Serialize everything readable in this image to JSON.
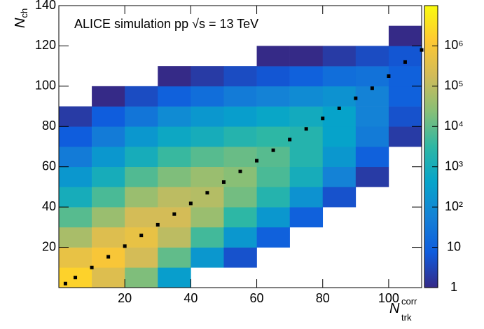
{
  "chart_data": {
    "type": "heatmap",
    "annotation": "ALICE simulation pp √s = 13 TeV",
    "x_label": {
      "main": "N",
      "sup": "corr",
      "sub": "trk"
    },
    "y_label": {
      "main": "N",
      "sub": "ch"
    },
    "xlim": [
      0,
      110
    ],
    "xticks": [
      20,
      40,
      60,
      80,
      100
    ],
    "ylim": [
      0,
      140
    ],
    "yticks": [
      20,
      40,
      60,
      80,
      100,
      120,
      140
    ],
    "zlim": [
      1,
      10000000
    ],
    "zticks": [
      1,
      10,
      {
        "value": 100,
        "label": "10²"
      },
      {
        "value": 1000,
        "label": "10³"
      },
      {
        "value": 10000,
        "label": "10⁴"
      },
      {
        "value": 100000,
        "label": "10⁵"
      },
      {
        "value": 1000000,
        "label": "10⁶"
      }
    ],
    "z_log": true,
    "colorscale": [
      "#352a87",
      "#0f5cdd",
      "#1481d6",
      "#06a4ca",
      "#2eb7a4",
      "#87bf77",
      "#d1bb59",
      "#fec832",
      "#f9fb0e"
    ],
    "x_bins": [
      0,
      10,
      20,
      30,
      40,
      50,
      60,
      70,
      80,
      90,
      100,
      110
    ],
    "y_bins": [
      0,
      10,
      20,
      30,
      40,
      50,
      60,
      70,
      80,
      90,
      100,
      110,
      120,
      130,
      140
    ],
    "z": [
      [
        2000000,
        500000,
        60000,
        8000,
        1000,
        200,
        40,
        8,
        2,
        null,
        null,
        null,
        null,
        null
      ],
      [
        300000,
        1000000,
        300000,
        40000,
        6000,
        1000,
        200,
        40,
        8,
        1,
        null,
        null,
        null,
        null
      ],
      [
        20000,
        200000,
        500000,
        200000,
        40000,
        7000,
        1000,
        200,
        30,
        4,
        null,
        null,
        null,
        null
      ],
      [
        300,
        10000,
        100000,
        200000,
        100000,
        20000,
        4000,
        600,
        100,
        10,
        1,
        null,
        null,
        null
      ],
      [
        null,
        200,
        5000,
        40000,
        80000,
        40000,
        8000,
        1000,
        200,
        20,
        2,
        null,
        null,
        null
      ],
      [
        null,
        5,
        200,
        3000,
        15000,
        25000,
        12000,
        2000,
        300,
        40,
        4,
        null,
        null,
        null
      ],
      [
        null,
        null,
        10,
        200,
        2000,
        6000,
        8000,
        3000,
        500,
        60,
        6,
        1,
        null,
        null
      ],
      [
        null,
        null,
        null,
        10,
        150,
        1000,
        2000,
        2000,
        800,
        100,
        10,
        1,
        null,
        null
      ],
      [
        null,
        null,
        null,
        null,
        5,
        60,
        200,
        400,
        400,
        150,
        20,
        2,
        null,
        null
      ],
      [
        null,
        null,
        null,
        null,
        null,
        2,
        10,
        40,
        60,
        60,
        25,
        4,
        null,
        null
      ],
      [
        null,
        null,
        null,
        null,
        null,
        null,
        null,
        2,
        5,
        10,
        10,
        6,
        1,
        null
      ]
    ],
    "profile": {
      "color": "#000000",
      "x": [
        2,
        5,
        10,
        15,
        20,
        25,
        30,
        35,
        40,
        45,
        50,
        55,
        60,
        65,
        70,
        75,
        80,
        85,
        90,
        95,
        100,
        105,
        110
      ],
      "values": [
        2,
        5,
        10,
        15.3,
        20.6,
        25.9,
        31.2,
        36.5,
        41.8,
        47.1,
        52.4,
        57.7,
        63,
        68.2,
        73.5,
        78.8,
        84,
        89,
        94,
        99,
        105,
        112,
        118
      ]
    }
  }
}
